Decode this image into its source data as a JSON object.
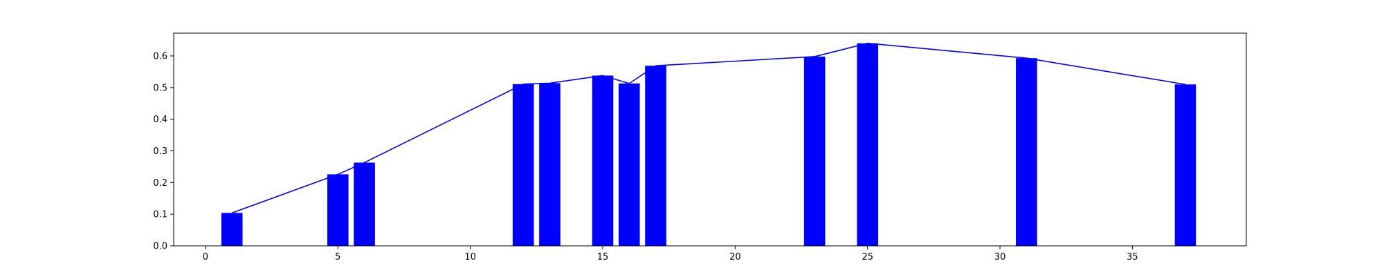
{
  "chart_data": {
    "type": "bar",
    "x": [
      1,
      5,
      6,
      12,
      13,
      15,
      16,
      17,
      23,
      25,
      31,
      37
    ],
    "values": [
      0.104,
      0.226,
      0.263,
      0.511,
      0.514,
      0.538,
      0.513,
      0.569,
      0.598,
      0.64,
      0.593,
      0.51
    ],
    "line_overlay": true,
    "title": "",
    "xlabel": "",
    "ylabel": "",
    "xlim": [
      -1.2,
      39.3
    ],
    "ylim": [
      0,
      0.672
    ],
    "xticks": [
      0,
      5,
      10,
      15,
      20,
      25,
      30,
      35
    ],
    "xtick_labels": [
      "0",
      "5",
      "10",
      "15",
      "20",
      "25",
      "30",
      "35"
    ],
    "yticks": [
      0.0,
      0.1,
      0.2,
      0.3,
      0.4,
      0.5,
      0.6
    ],
    "ytick_labels": [
      "0.0",
      "0.1",
      "0.2",
      "0.3",
      "0.4",
      "0.5",
      "0.6"
    ],
    "bar_color": "#0000ff",
    "line_color": "#0000ff",
    "grid": false,
    "legend": "none"
  }
}
